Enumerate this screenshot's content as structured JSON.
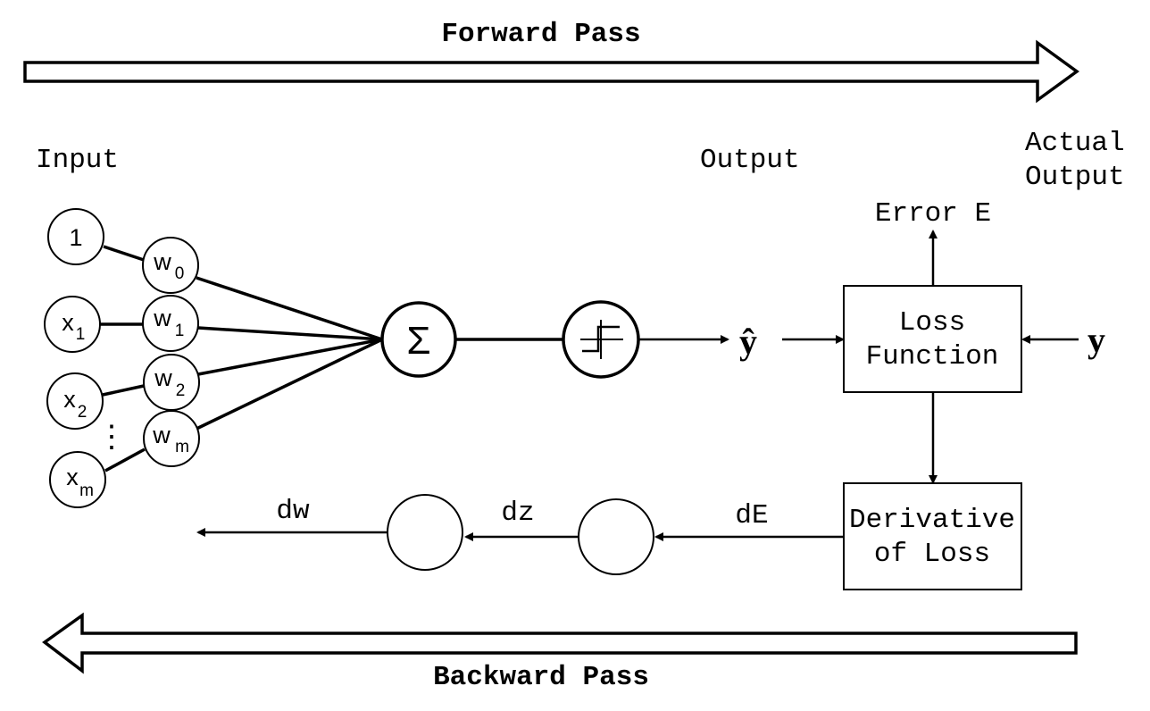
{
  "titles": {
    "forward": "Forward Pass",
    "backward": "Backward Pass"
  },
  "labels": {
    "input": "Input",
    "output": "Output",
    "actual_output_line1": "Actual",
    "actual_output_line2": "Output",
    "error": "Error E",
    "y_hat": "ŷ",
    "y": "y",
    "dw": "dw",
    "dz": "dz",
    "dE": "dE"
  },
  "inputs": [
    {
      "main": "1",
      "sub": ""
    },
    {
      "main": "x",
      "sub": "1"
    },
    {
      "main": "x",
      "sub": "2"
    },
    {
      "main": "x",
      "sub": "m"
    }
  ],
  "weights": [
    {
      "main": "w",
      "sub": "0"
    },
    {
      "main": "w",
      "sub": "1"
    },
    {
      "main": "w",
      "sub": "2"
    },
    {
      "main": "w",
      "sub": "m"
    }
  ],
  "ellipsis": "⋮",
  "sum_symbol": "Σ",
  "boxes": {
    "loss_line1": "Loss",
    "loss_line2": "Function",
    "deriv_line1": "Derivative",
    "deriv_line2": "of Loss"
  }
}
